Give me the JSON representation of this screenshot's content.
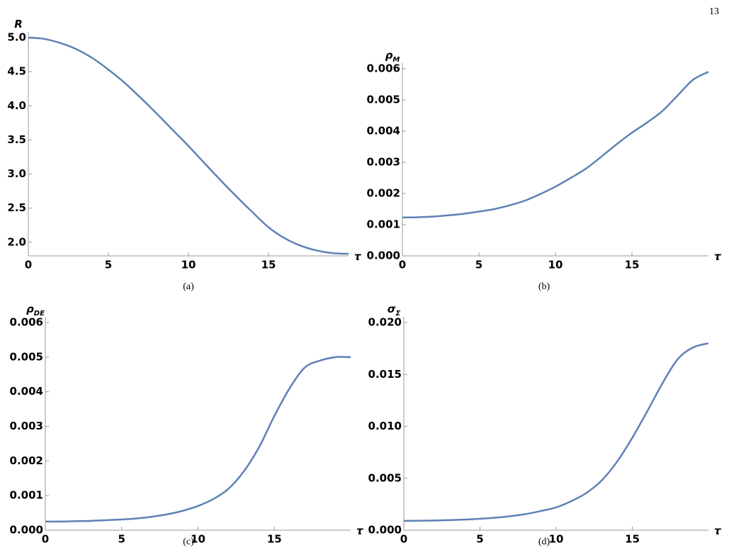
{
  "page_number": "13",
  "chart_data": [
    {
      "type": "line",
      "caption": "(a)",
      "ylabel": "R",
      "ylabel_sub": null,
      "xlabel": "τ",
      "xlim": [
        0,
        20
      ],
      "xticks": [
        0,
        5,
        10,
        15
      ],
      "ylim": [
        1.8,
        5.0
      ],
      "yticks": [
        {
          "value": 2,
          "label": "2.0"
        },
        2.5,
        {
          "value": 3,
          "label": "3.0"
        },
        3.5,
        {
          "value": 4,
          "label": "4.0"
        },
        4.5,
        {
          "value": 5,
          "label": "5.0"
        }
      ],
      "x": [
        0,
        1,
        2,
        3,
        4,
        5,
        6,
        7,
        8,
        9,
        10,
        11,
        12,
        13,
        14,
        15,
        16,
        17,
        18,
        19,
        20
      ],
      "series": [
        {
          "color": "#5e81b5",
          "values": [
            5.0,
            4.98,
            4.92,
            4.83,
            4.7,
            4.53,
            4.34,
            4.12,
            3.89,
            3.65,
            3.41,
            3.16,
            2.91,
            2.67,
            2.44,
            2.22,
            2.06,
            1.95,
            1.88,
            1.84,
            1.83
          ]
        }
      ]
    },
    {
      "type": "line",
      "caption": "(b)",
      "ylabel": "ρ",
      "ylabel_sub": "M",
      "xlabel": "τ",
      "xlim": [
        0,
        20
      ],
      "xticks": [
        0,
        5,
        10,
        15
      ],
      "ylim": [
        0,
        0.006
      ],
      "yticks": [
        {
          "value": 0,
          "label": "0.000"
        },
        0.001,
        0.002,
        0.003,
        0.004,
        0.005,
        0.006
      ],
      "x": [
        0,
        1,
        2,
        3,
        4,
        5,
        6,
        7,
        8,
        9,
        10,
        11,
        12,
        13,
        14,
        15,
        16,
        17,
        18,
        19,
        20
      ],
      "series": [
        {
          "color": "#5e81b5",
          "values": [
            0.00123,
            0.00124,
            0.00126,
            0.0013,
            0.00135,
            0.00142,
            0.0015,
            0.00162,
            0.00177,
            0.00198,
            0.00222,
            0.0025,
            0.0028,
            0.00318,
            0.00358,
            0.00395,
            0.00428,
            0.00465,
            0.00515,
            0.00565,
            0.0059
          ]
        }
      ]
    },
    {
      "type": "line",
      "caption": "(c)",
      "ylabel": "ρ",
      "ylabel_sub": "DE",
      "xlabel": "τ",
      "xlim": [
        0,
        20
      ],
      "xticks": [
        0,
        5,
        10,
        15
      ],
      "ylim": [
        0,
        0.006
      ],
      "yticks": [
        {
          "value": 0,
          "label": "0.000"
        },
        0.001,
        0.002,
        0.003,
        0.004,
        0.005,
        0.006
      ],
      "x": [
        0,
        1,
        2,
        3,
        4,
        5,
        6,
        7,
        8,
        9,
        10,
        11,
        12,
        13,
        14,
        15,
        16,
        17,
        18,
        19,
        20
      ],
      "series": [
        {
          "color": "#5e81b5",
          "values": [
            0.00025,
            0.00025,
            0.00026,
            0.00027,
            0.00029,
            0.00031,
            0.00034,
            0.00039,
            0.00046,
            0.00056,
            0.0007,
            0.0009,
            0.0012,
            0.0017,
            0.0024,
            0.0033,
            0.0041,
            0.0047,
            0.0049,
            0.005,
            0.005
          ]
        }
      ]
    },
    {
      "type": "line",
      "caption": "(d)",
      "ylabel": "σ",
      "ylabel_sub": "Σ",
      "xlabel": "τ",
      "xlim": [
        0,
        20
      ],
      "xticks": [
        0,
        5,
        10,
        15
      ],
      "ylim": [
        0,
        0.02
      ],
      "yticks": [
        {
          "value": 0,
          "label": "0.000"
        },
        0.005,
        {
          "value": 0.01,
          "label": "0.010"
        },
        0.015,
        {
          "value": 0.02,
          "label": "0.020"
        }
      ],
      "x": [
        0,
        1,
        2,
        3,
        4,
        5,
        6,
        7,
        8,
        9,
        10,
        11,
        12,
        13,
        14,
        15,
        16,
        17,
        18,
        19,
        20
      ],
      "series": [
        {
          "color": "#5e81b5",
          "values": [
            0.0009,
            0.00091,
            0.00093,
            0.00097,
            0.00102,
            0.0011,
            0.0012,
            0.00135,
            0.00155,
            0.00185,
            0.0022,
            0.0028,
            0.0036,
            0.0048,
            0.0066,
            0.0089,
            0.0115,
            0.0142,
            0.0165,
            0.0176,
            0.018
          ]
        }
      ]
    }
  ]
}
